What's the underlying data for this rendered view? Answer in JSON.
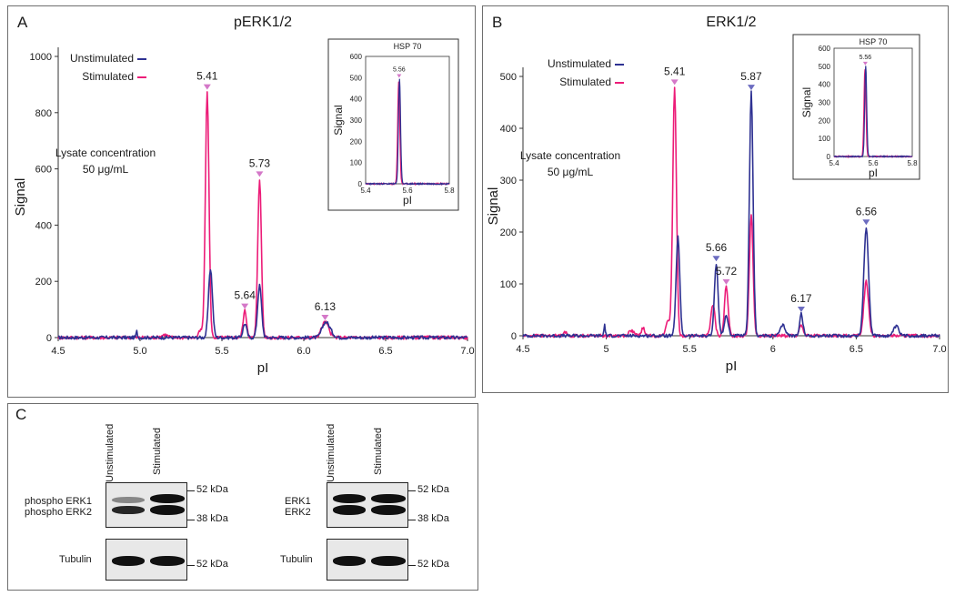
{
  "colors": {
    "unstim": "#2e3192",
    "stim": "#ec1c78",
    "marker_unstim": "#6c6cc0",
    "marker_stim": "#d478c8"
  },
  "chart_data": [
    {
      "panel": "A",
      "type": "line",
      "title": "pERK1/2",
      "xlabel": "pI",
      "ylabel": "Signal",
      "xlim": [
        4.5,
        7.0
      ],
      "ylim": [
        0,
        1000
      ],
      "xticks": [
        "4.5",
        "5.0",
        "5.5",
        "6.0",
        "6.5",
        "7.0"
      ],
      "yticks": [
        "0",
        "200",
        "400",
        "600",
        "800",
        "1000"
      ],
      "annotation": [
        "Lysate concentration",
        "50 μg/mL"
      ],
      "legend": [
        "Unstimulated",
        "Stimulated"
      ],
      "series": [
        {
          "name": "Unstimulated",
          "peaks": [
            [
              4.98,
              22,
              0.004
            ],
            [
              5.43,
              245,
              0.012
            ],
            [
              5.64,
              50,
              0.011
            ],
            [
              5.73,
              185,
              0.012
            ],
            [
              6.13,
              48,
              0.02
            ],
            [
              6.16,
              20,
              0.02
            ]
          ]
        },
        {
          "name": "Stimulated",
          "peaks": [
            [
              5.15,
              10,
              0.02
            ],
            [
              5.37,
              25,
              0.012
            ],
            [
              5.41,
              875,
              0.011
            ],
            [
              5.64,
              95,
              0.011
            ],
            [
              5.73,
              565,
              0.011
            ],
            [
              6.13,
              55,
              0.022
            ]
          ]
        }
      ],
      "peak_labels": [
        {
          "x": 5.41,
          "y": 875,
          "text": "5.41",
          "series": "Stimulated"
        },
        {
          "x": 5.64,
          "y": 95,
          "text": "5.64",
          "series": "Stimulated"
        },
        {
          "x": 5.73,
          "y": 565,
          "text": "5.73",
          "series": "Stimulated"
        },
        {
          "x": 6.13,
          "y": 55,
          "text": "6.13",
          "series": "Stimulated"
        }
      ],
      "inset": {
        "title": "HSP 70",
        "xlabel": "pI",
        "ylabel": "Signal",
        "xlim": [
          5.4,
          5.8
        ],
        "ylim": [
          0,
          600
        ],
        "xticks": [
          "5.4",
          "5.6",
          "5.8"
        ],
        "yticks": [
          "0",
          "100",
          "200",
          "300",
          "400",
          "500",
          "600"
        ],
        "peak_label": "5.56",
        "peak": [
          5.56,
          495,
          0.005
        ]
      }
    },
    {
      "panel": "B",
      "type": "line",
      "title": "ERK1/2",
      "xlabel": "pI",
      "ylabel": "Signal",
      "xlim": [
        4.5,
        7.0
      ],
      "ylim": [
        0,
        500
      ],
      "xticks": [
        "4.5",
        "5",
        "5.5",
        "6",
        "6.5",
        "7.0"
      ],
      "yticks": [
        "0",
        "100",
        "200",
        "300",
        "400",
        "500"
      ],
      "annotation": [
        "Lysate concentration",
        "50 μg/mL"
      ],
      "legend": [
        "Unstimulated",
        "Stimulated"
      ],
      "series": [
        {
          "name": "Unstimulated",
          "peaks": [
            [
              4.99,
              22,
              0.004
            ],
            [
              5.43,
              190,
              0.011
            ],
            [
              5.66,
              140,
              0.011
            ],
            [
              5.72,
              38,
              0.012
            ],
            [
              5.87,
              470,
              0.011
            ],
            [
              6.06,
              20,
              0.015
            ],
            [
              6.17,
              42,
              0.01
            ],
            [
              6.56,
              210,
              0.014
            ],
            [
              6.74,
              18,
              0.015
            ]
          ]
        },
        {
          "name": "Stimulated",
          "peaks": [
            [
              4.75,
              8,
              0.01
            ],
            [
              5.15,
              10,
              0.015
            ],
            [
              5.22,
              15,
              0.01
            ],
            [
              5.37,
              30,
              0.012
            ],
            [
              5.41,
              480,
              0.011
            ],
            [
              5.64,
              60,
              0.012
            ],
            [
              5.72,
              95,
              0.011
            ],
            [
              5.87,
              235,
              0.011
            ],
            [
              6.17,
              18,
              0.012
            ],
            [
              6.56,
              105,
              0.014
            ]
          ]
        }
      ],
      "peak_labels": [
        {
          "x": 5.41,
          "y": 480,
          "text": "5.41",
          "series": "Stimulated"
        },
        {
          "x": 5.66,
          "y": 140,
          "text": "5.66",
          "series": "Unstimulated"
        },
        {
          "x": 5.72,
          "y": 95,
          "text": "5.72",
          "series": "Stimulated"
        },
        {
          "x": 5.87,
          "y": 470,
          "text": "5.87",
          "series": "Unstimulated"
        },
        {
          "x": 6.17,
          "y": 42,
          "text": "6.17",
          "series": "Unstimulated"
        },
        {
          "x": 6.56,
          "y": 210,
          "text": "6.56",
          "series": "Unstimulated"
        }
      ],
      "inset": {
        "title": "HSP 70",
        "xlabel": "pI",
        "ylabel": "Signal",
        "xlim": [
          5.4,
          5.8
        ],
        "ylim": [
          0,
          600
        ],
        "xticks": [
          "5.4",
          "5.6",
          "5.8"
        ],
        "yticks": [
          "0",
          "100",
          "200",
          "300",
          "400",
          "500",
          "600"
        ],
        "peak_label": "5.56",
        "peak": [
          5.56,
          500,
          0.005
        ]
      }
    }
  ],
  "panelC": {
    "label": "C",
    "lanes": [
      "Unstimulated",
      "Stimulated"
    ],
    "left": {
      "labels": [
        "phospho ERK1",
        "phospho ERK2"
      ],
      "loading_label": "Tubulin",
      "markers": [
        "52 kDa",
        "38 kDa"
      ],
      "loading_marker": "52 kDa"
    },
    "right": {
      "labels": [
        "ERK1",
        "ERK2"
      ],
      "loading_label": "Tubulin",
      "markers": [
        "52 kDa",
        "38 kDa"
      ],
      "loading_marker": "52 kDa"
    }
  }
}
